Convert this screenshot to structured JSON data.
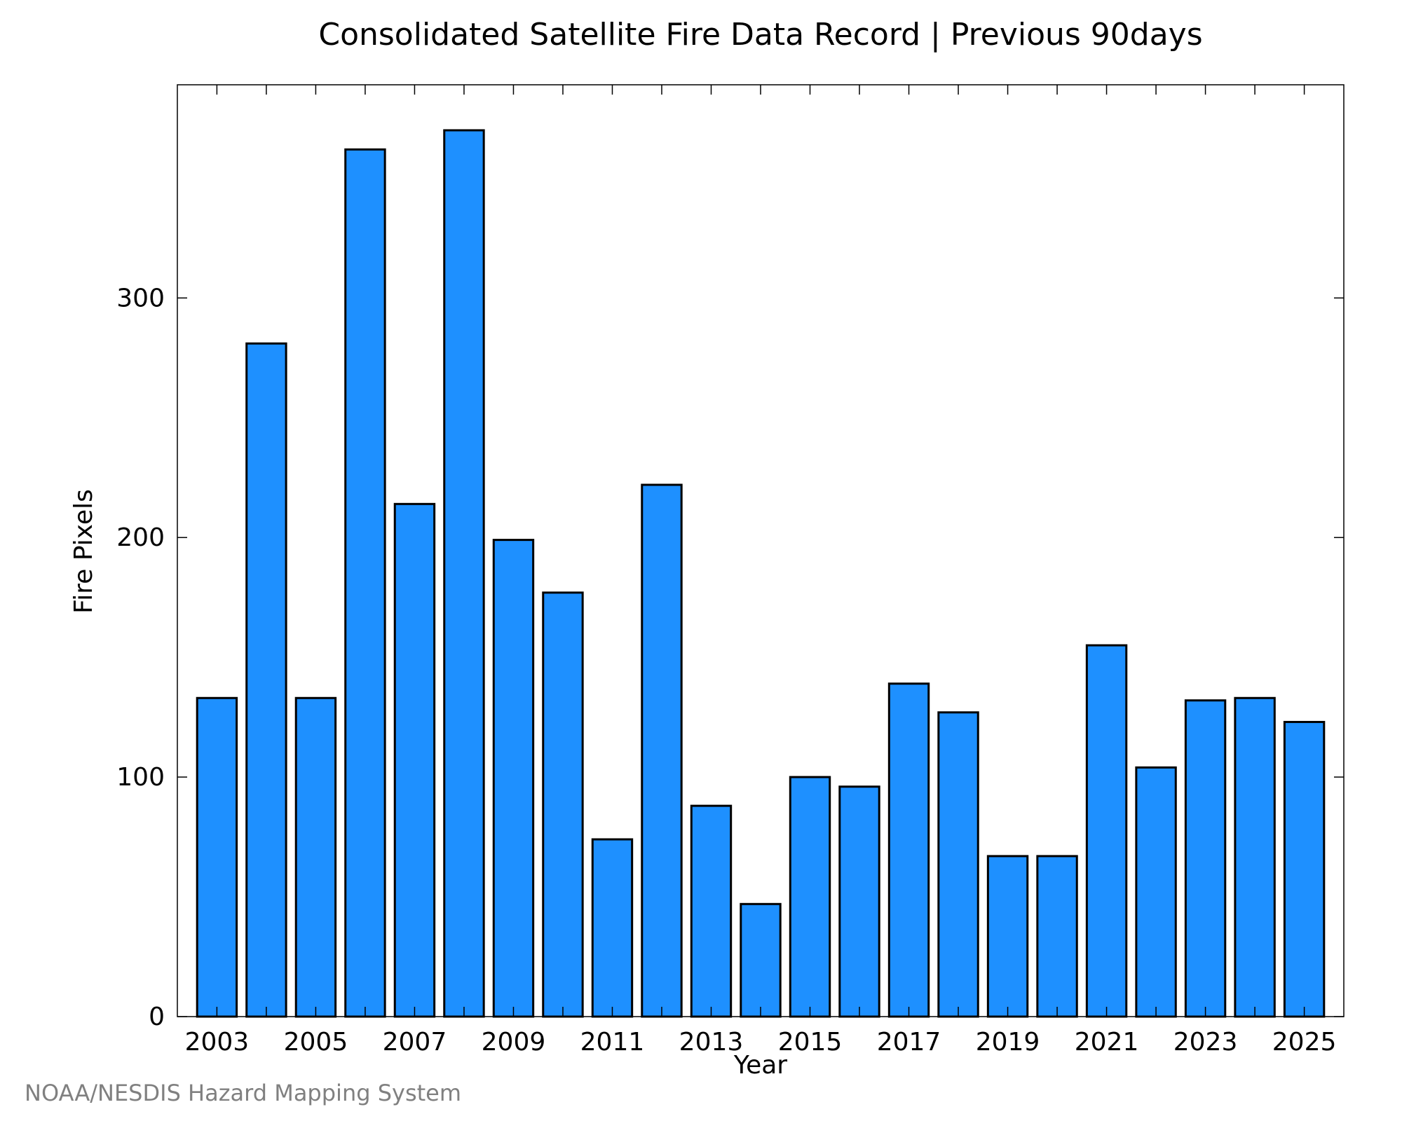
{
  "chart_data": {
    "type": "bar",
    "title": "Consolidated Satellite Fire Data Record | Previous 90days",
    "xlabel": "Year",
    "ylabel": "Fire Pixels",
    "categories": [
      "2003",
      "2004",
      "2005",
      "2006",
      "2007",
      "2008",
      "2009",
      "2010",
      "2011",
      "2012",
      "2013",
      "2014",
      "2015",
      "2016",
      "2017",
      "2018",
      "2019",
      "2020",
      "2021",
      "2022",
      "2023",
      "2024",
      "2025"
    ],
    "values": [
      133,
      281,
      133,
      362,
      214,
      370,
      199,
      177,
      74,
      222,
      88,
      47,
      100,
      96,
      139,
      127,
      67,
      67,
      155,
      104,
      132,
      133,
      123
    ],
    "x_tick_labels": [
      "2003",
      "2005",
      "2007",
      "2009",
      "2011",
      "2013",
      "2015",
      "2017",
      "2019",
      "2021",
      "2023",
      "2025"
    ],
    "y_ticks": [
      0,
      100,
      200,
      300
    ],
    "ylim": [
      0,
      389
    ],
    "grid": false,
    "bar_color": "#1E90FF",
    "bar_edge_color": "#000000"
  },
  "credit": {
    "text": "NOAA/NESDIS Hazard Mapping System",
    "color": "#808080"
  }
}
